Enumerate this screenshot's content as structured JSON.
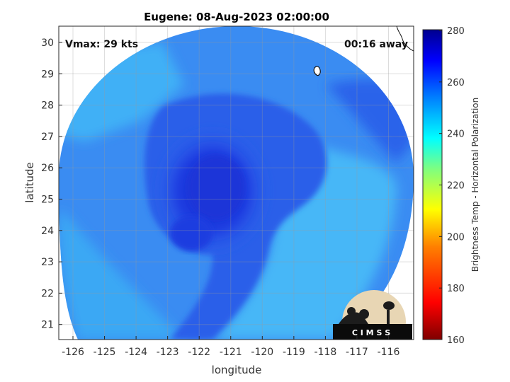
{
  "title": "Eugene: 08-Aug-2023 02:00:00",
  "vmax_label": "Vmax: 29 kts",
  "time_label": "00:16 away",
  "xlabel": "longitude",
  "ylabel": "latitude",
  "x_ticks": [
    "-126",
    "-125",
    "-124",
    "-123",
    "-122",
    "-121",
    "-120",
    "-119",
    "-118",
    "-117",
    "-116"
  ],
  "y_ticks": [
    "30",
    "29",
    "28",
    "27",
    "26",
    "25",
    "24",
    "23",
    "22",
    "21"
  ],
  "colorbar": {
    "label": "Brightness Temp - Horizontal Polarization",
    "ticks": [
      "280",
      "260",
      "240",
      "220",
      "200",
      "180",
      "160"
    ],
    "range": [
      160,
      280
    ],
    "colors": [
      "#7f0000",
      "#ff0000",
      "#ff7f00",
      "#ffff00",
      "#7fff7f",
      "#00ffff",
      "#007fff",
      "#0000ff",
      "#00008f"
    ]
  },
  "logo_text": "C I M S S",
  "chart_data": {
    "type": "heatmap",
    "title": "Eugene: 08-Aug-2023 02:00:00",
    "xlabel": "longitude",
    "ylabel": "latitude",
    "xlim": [
      -126.4,
      -115.3
    ],
    "ylim": [
      20.5,
      30.5
    ],
    "colorbar_label": "Brightness Temp - Horizontal Polarization",
    "colorbar_range": [
      160,
      280
    ],
    "grid": true,
    "center_estimate": {
      "lon": -121.5,
      "lat": 25.0
    }
  }
}
